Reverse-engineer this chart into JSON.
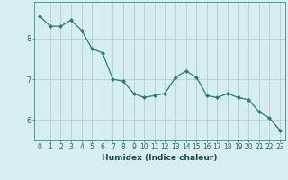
{
  "x": [
    0,
    1,
    2,
    3,
    4,
    5,
    6,
    7,
    8,
    9,
    10,
    11,
    12,
    13,
    14,
    15,
    16,
    17,
    18,
    19,
    20,
    21,
    22,
    23
  ],
  "y": [
    8.55,
    8.3,
    8.3,
    8.45,
    8.2,
    7.75,
    7.65,
    7.0,
    6.95,
    6.65,
    6.55,
    6.6,
    6.65,
    7.05,
    7.2,
    7.05,
    6.6,
    6.55,
    6.65,
    6.55,
    6.5,
    6.2,
    6.05,
    5.75
  ],
  "line_color": "#2a7d6e",
  "marker": "D",
  "marker_size": 2.0,
  "bg_color": "#d6eeee",
  "grid_color": "#b0d0d0",
  "xlabel": "Humidex (Indice chaleur)",
  "yticks": [
    6,
    7,
    8
  ],
  "xticks": [
    0,
    1,
    2,
    3,
    4,
    5,
    6,
    7,
    8,
    9,
    10,
    11,
    12,
    13,
    14,
    15,
    16,
    17,
    18,
    19,
    20,
    21,
    22,
    23
  ],
  "xlim": [
    -0.5,
    23.5
  ],
  "ylim": [
    5.5,
    8.9
  ],
  "spine_color": "#4a8a7a",
  "tick_color": "#2a6655",
  "xlabel_color": "#1a4a3a",
  "tick_fontsize": 5.5,
  "xlabel_fontsize": 6.5
}
